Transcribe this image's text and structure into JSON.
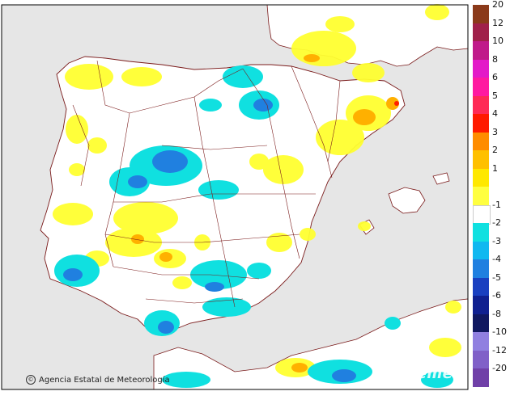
{
  "map": {
    "colors": {
      "sea": "#e6e6e6",
      "land": "#ffffff",
      "border": "#7a1a1a",
      "frame": "#000000"
    },
    "credit_text": "Agencia Estatal de Meteorología",
    "credit_icon": "copyright-icon",
    "watermark": "aemet"
  },
  "legend": {
    "entries": [
      {
        "label": "20",
        "color": "#8b3a1a"
      },
      {
        "label": "12",
        "color": "#a0204a"
      },
      {
        "label": "10",
        "color": "#c01a8a"
      },
      {
        "label": "8",
        "color": "#e31ac8"
      },
      {
        "label": "6",
        "color": "#ff1aa0"
      },
      {
        "label": "5",
        "color": "#ff2a55"
      },
      {
        "label": "4",
        "color": "#ff1a00"
      },
      {
        "label": "3",
        "color": "#ff8c00"
      },
      {
        "label": "2",
        "color": "#ffc000"
      },
      {
        "label": "1",
        "color": "#ffe800"
      },
      {
        "label": "",
        "color": "#ffff40"
      },
      {
        "label": "-1",
        "color": "#ffffff"
      },
      {
        "label": "-2",
        "color": "#10e0e0"
      },
      {
        "label": "-3",
        "color": "#10b8f0"
      },
      {
        "label": "-4",
        "color": "#2080e0"
      },
      {
        "label": "-5",
        "color": "#1a40c0"
      },
      {
        "label": "-6",
        "color": "#102090"
      },
      {
        "label": "-8",
        "color": "#101860"
      },
      {
        "label": "-10",
        "color": "#9080e0"
      },
      {
        "label": "-12",
        "color": "#8060c8"
      },
      {
        "label": "-20",
        "color": "#7040a8"
      }
    ]
  }
}
